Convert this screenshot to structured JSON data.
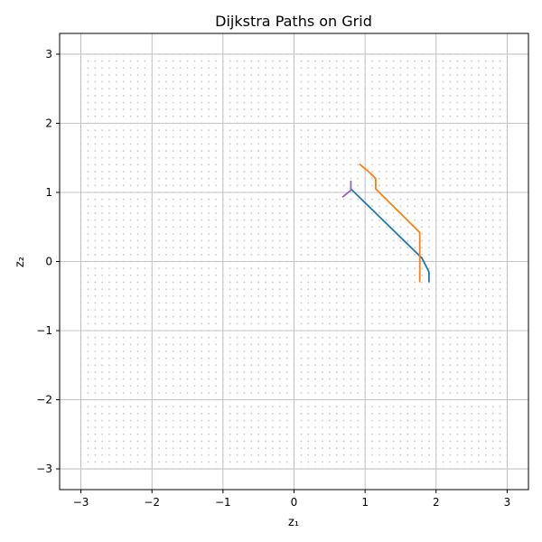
{
  "chart_data": {
    "type": "line",
    "title": "Dijkstra Paths on Grid",
    "xlabel": "z₁",
    "ylabel": "z₂",
    "xlim": [
      -3.3,
      3.3
    ],
    "ylim": [
      -3.3,
      3.3
    ],
    "xticks": [
      -3,
      -2,
      -1,
      0,
      1,
      2,
      3
    ],
    "yticks": [
      -3,
      -2,
      -1,
      0,
      1,
      2,
      3
    ],
    "xtick_labels": [
      "−3",
      "−2",
      "−1",
      "0",
      "1",
      "2",
      "3"
    ],
    "ytick_labels": [
      "−3",
      "−2",
      "−1",
      "0",
      "1",
      "2",
      "3"
    ],
    "grid": true,
    "background_points": {
      "x_range": [
        -3,
        3
      ],
      "y_range": [
        -3,
        3
      ],
      "count_per_axis": 61,
      "color": "#c8c8c8"
    },
    "series": [
      {
        "color": "#1f77b4",
        "x": [
          0.8,
          1.8,
          1.9,
          1.9
        ],
        "y": [
          1.05,
          0.05,
          -0.15,
          -0.3
        ]
      },
      {
        "color": "#ff7f0e",
        "x": [
          0.92,
          1.05,
          1.15,
          1.15,
          1.77,
          1.77
        ],
        "y": [
          1.41,
          1.3,
          1.2,
          1.05,
          0.42,
          -0.3
        ]
      },
      {
        "color": "#9467bd",
        "x": [
          0.68,
          0.8,
          0.8
        ],
        "y": [
          0.93,
          1.03,
          1.17
        ]
      }
    ]
  }
}
